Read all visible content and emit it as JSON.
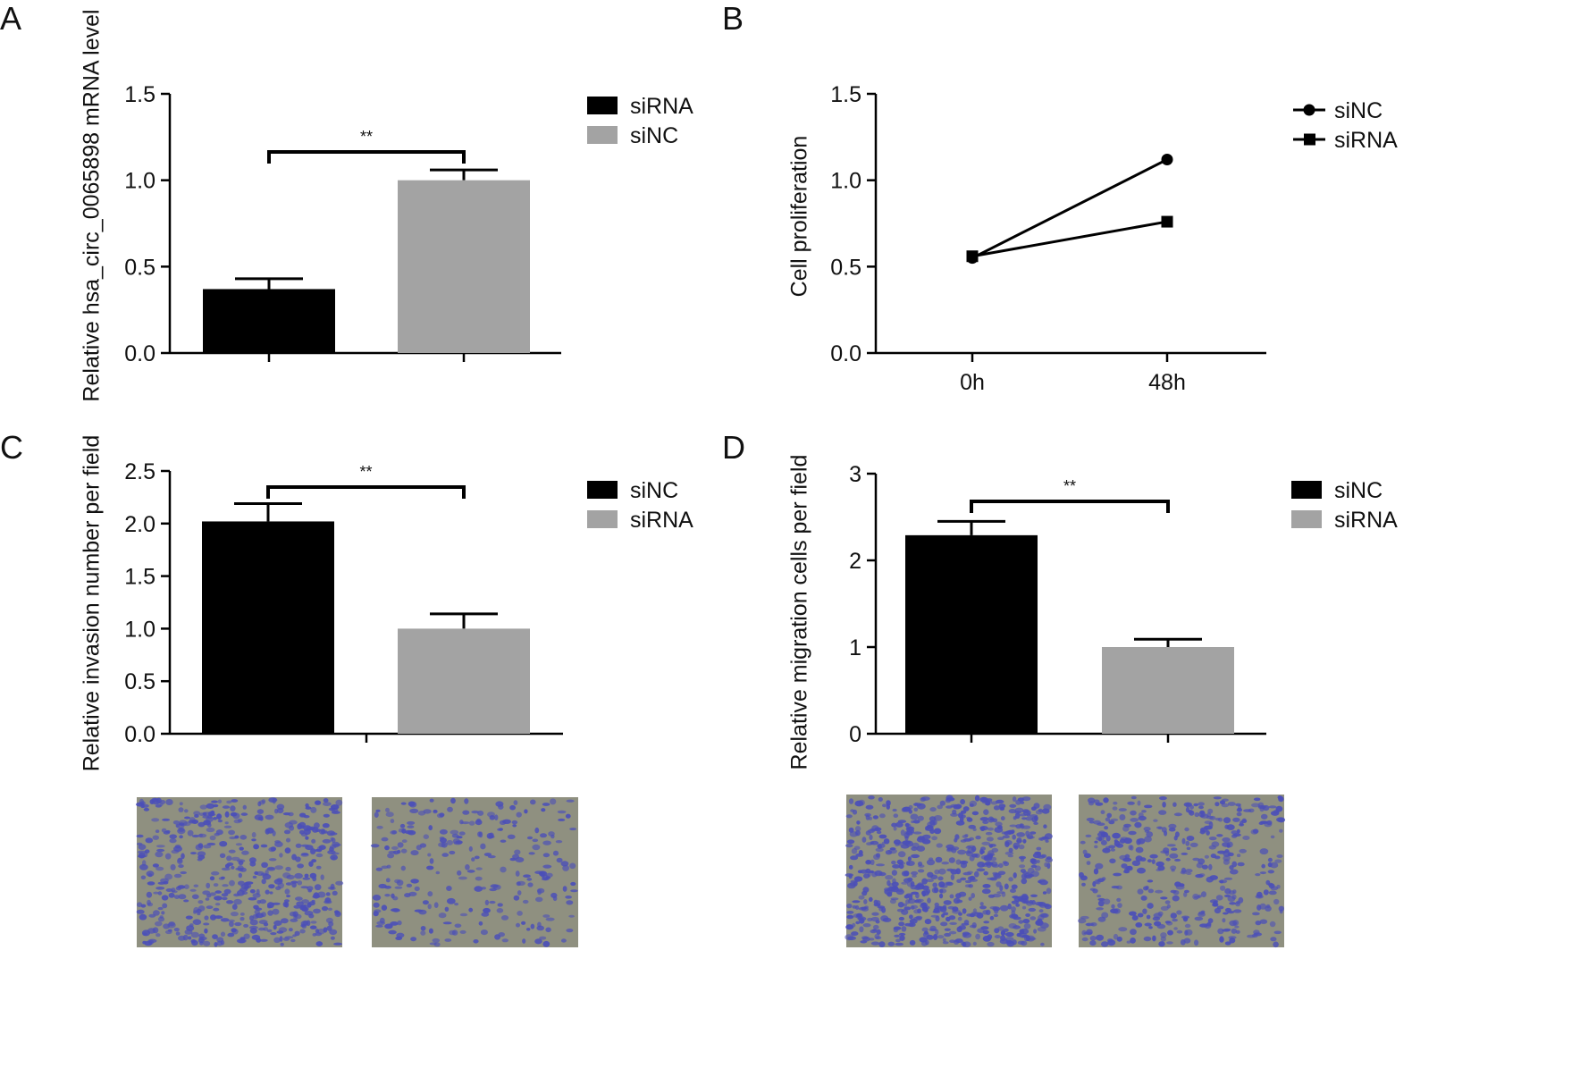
{
  "panels": [
    {
      "letter": "A"
    },
    {
      "letter": "B"
    },
    {
      "letter": "C"
    },
    {
      "letter": "D"
    }
  ],
  "colors": {
    "black_bar": "#000000",
    "gray_bar": "#a3a3a3",
    "axis": "#000000",
    "micrograph_bg": "#8f9080",
    "cell_stain": "#4b4fb8"
  },
  "chart_data": [
    {
      "type": "bar",
      "panel": "A",
      "title": "",
      "xlabel": "",
      "ylabel": "Relative hsa_circ_0065898 mRNA level",
      "ylim": [
        0,
        1.5
      ],
      "yticks": [
        "0.0",
        "0.5",
        "1.0",
        "1.5"
      ],
      "series": [
        {
          "name": "siRNA",
          "color": "#000000",
          "value": 0.37,
          "error": 0.06
        },
        {
          "name": "siNC",
          "color": "#a3a3a3",
          "value": 1.0,
          "error": 0.06
        }
      ],
      "significance": "**",
      "legend": [
        "siRNA",
        "siNC"
      ],
      "legend_position": "right"
    },
    {
      "type": "line",
      "panel": "B",
      "title": "",
      "xlabel": "",
      "ylabel": "Cell proliferation",
      "ylim": [
        0,
        1.5
      ],
      "yticks": [
        "0.0",
        "0.5",
        "1.0",
        "1.5"
      ],
      "categories": [
        "0h",
        "48h"
      ],
      "series": [
        {
          "name": "siNC",
          "marker": "circle",
          "values": [
            0.55,
            1.12
          ]
        },
        {
          "name": "siRNA",
          "marker": "square",
          "values": [
            0.56,
            0.76
          ]
        }
      ],
      "legend": [
        "siNC",
        "siRNA"
      ],
      "legend_position": "right"
    },
    {
      "type": "bar",
      "panel": "C",
      "title": "",
      "xlabel": "",
      "ylabel": "Relative invasion number per field",
      "ylim": [
        0,
        2.5
      ],
      "yticks": [
        "0.0",
        "0.5",
        "1.0",
        "1.5",
        "2.0",
        "2.5"
      ],
      "series": [
        {
          "name": "siNC",
          "color": "#000000",
          "value": 2.02,
          "error": 0.17
        },
        {
          "name": "siRNA",
          "color": "#a3a3a3",
          "value": 1.0,
          "error": 0.14
        }
      ],
      "significance": "**",
      "legend": [
        "siNC",
        "siRNA"
      ],
      "legend_position": "right"
    },
    {
      "type": "bar",
      "panel": "D",
      "title": "",
      "xlabel": "",
      "ylabel": "Relative migration cells per field",
      "ylim": [
        0,
        3
      ],
      "yticks": [
        "0",
        "1",
        "2",
        "3"
      ],
      "series": [
        {
          "name": "siNC",
          "color": "#000000",
          "value": 2.29,
          "error": 0.16
        },
        {
          "name": "siRNA",
          "color": "#a3a3a3",
          "value": 1.0,
          "error": 0.09
        }
      ],
      "significance": "**",
      "legend": [
        "siNC",
        "siRNA"
      ],
      "legend_position": "right"
    }
  ]
}
